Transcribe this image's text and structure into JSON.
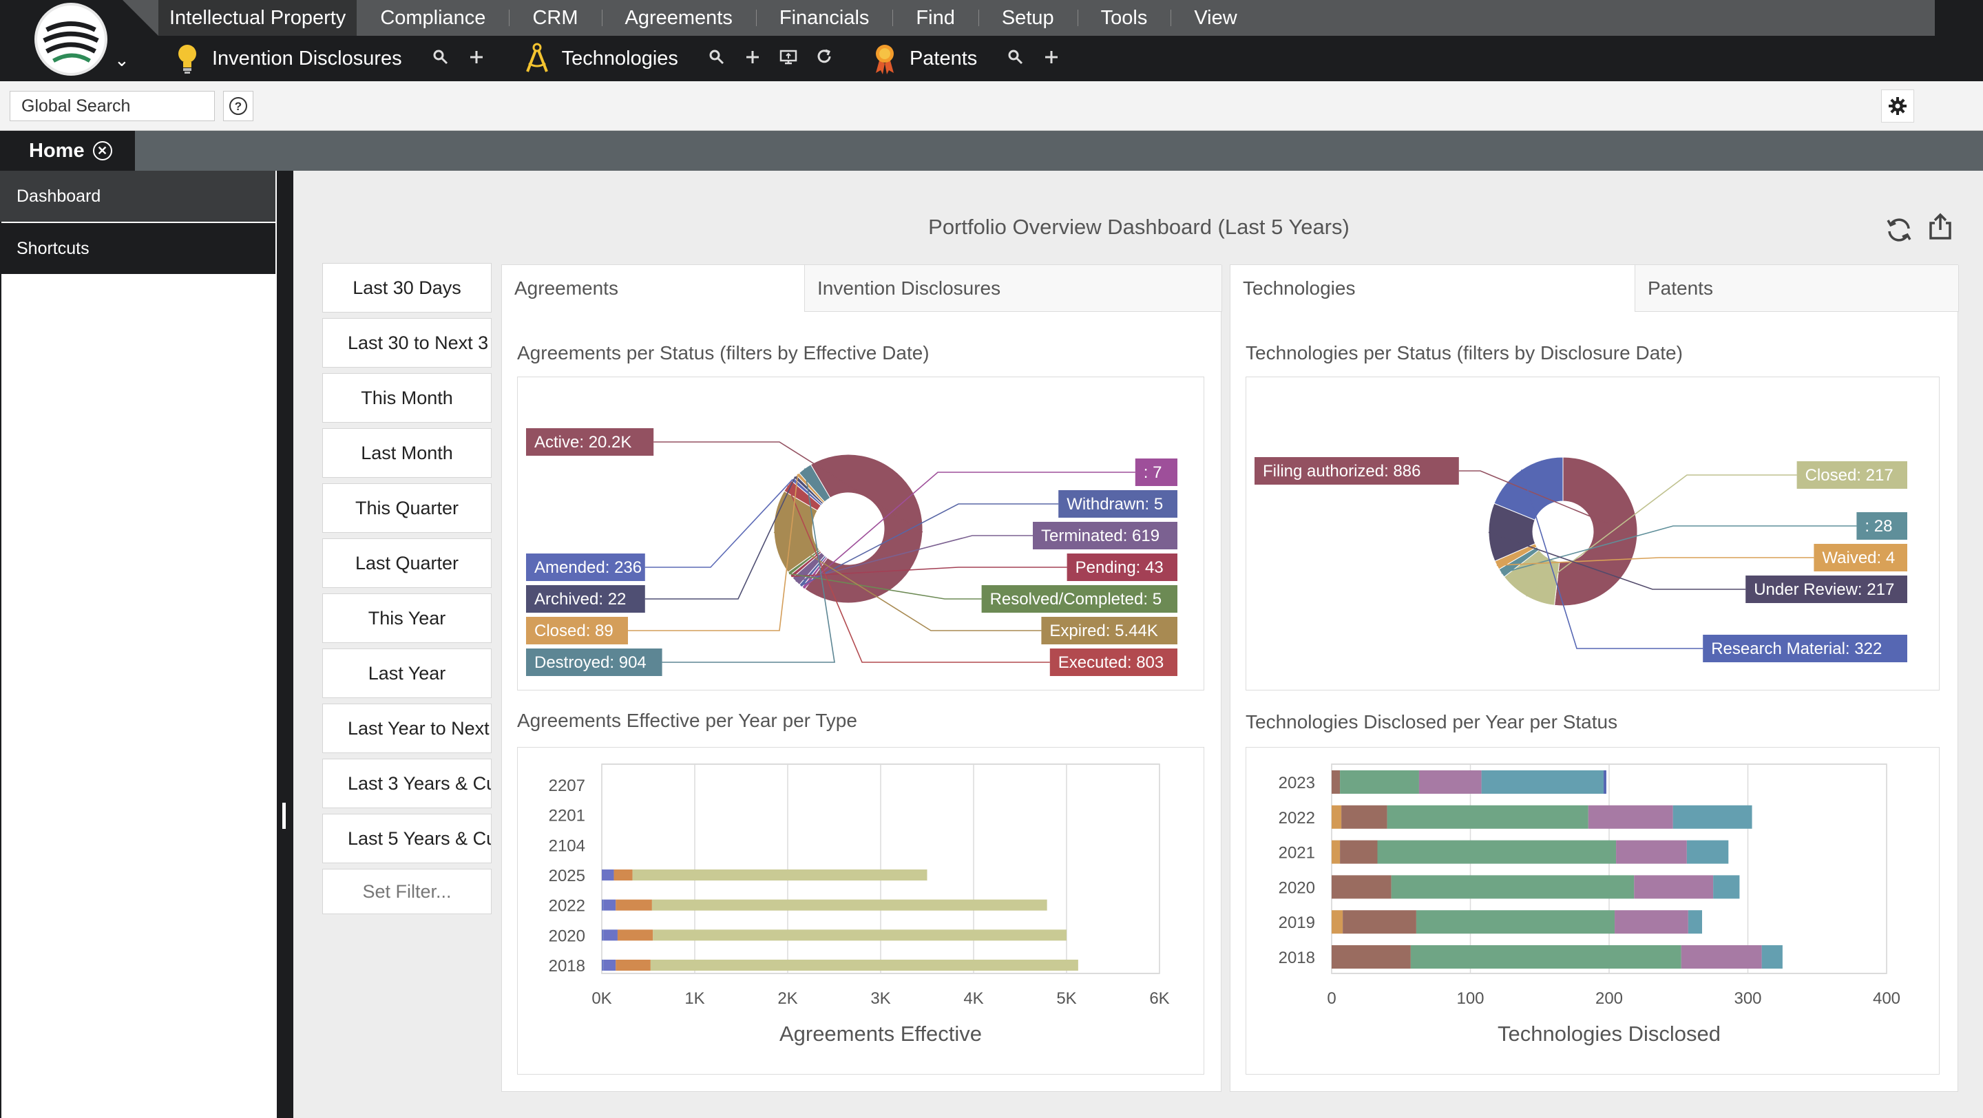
{
  "nav": {
    "main_menu": [
      "Intellectual Property",
      "Compliance",
      "CRM",
      "Agreements",
      "Financials",
      "Find",
      "Setup",
      "Tools",
      "View"
    ],
    "modules": [
      {
        "label": "Invention Disclosures",
        "icon": "lightbulb-icon"
      },
      {
        "label": "Technologies",
        "icon": "compass-icon"
      },
      {
        "label": "Patents",
        "icon": "award-ribbon-icon"
      }
    ]
  },
  "search": {
    "placeholder": "Global Search",
    "value": "Global Search"
  },
  "tabs": {
    "home_label": "Home"
  },
  "sidebar": {
    "items": [
      "Dashboard",
      "Shortcuts"
    ]
  },
  "dashboard": {
    "title": "Portfolio Overview Dashboard (Last 5 Years)",
    "filters": [
      "Last 30 Days",
      "Last 30 to Next 3",
      "This Month",
      "Last Month",
      "This Quarter",
      "Last Quarter",
      "This Year",
      "Last Year",
      "Last Year to Next",
      "Last 3 Years & Cu",
      "Last 5 Years & Cu",
      "Set Filter..."
    ],
    "left_tabs": [
      "Agreements",
      "Invention Disclosures"
    ],
    "right_tabs": [
      "Technologies",
      "Patents"
    ],
    "agreements_status_title": "Agreements per Status (filters by Effective Date)",
    "agreements_year_title": "Agreements Effective per Year per Type",
    "technologies_status_title": "Technologies per Status (filters by Disclosure Date)",
    "technologies_year_title": "Technologies Disclosed per Year per Status"
  },
  "colors": {
    "accent_dark": "#1c1d1f",
    "menu_grey": "#555759",
    "tab_strip": "#5b6266"
  },
  "chart_data": [
    {
      "type": "pie",
      "title": "Agreements per Status (filters by Effective Date)",
      "labels": [
        "Active: 20.2K",
        ": 7",
        "Withdrawn: 5",
        "Terminated: 619",
        "Pending: 43",
        "Resolved/Completed: 5",
        "Expired: 5.44K",
        "Executed: 803",
        "Amended: 236",
        "Archived: 22",
        "Closed: 89",
        "Destroyed: 904"
      ],
      "values": [
        20200,
        7,
        5,
        619,
        43,
        5,
        5440,
        803,
        236,
        22,
        89,
        904
      ],
      "colors": [
        "#935161",
        "#9e4f9a",
        "#5866a6",
        "#7b6191",
        "#a34055",
        "#6c8a54",
        "#a88a52",
        "#b24a4f",
        "#5c6ab6",
        "#4f4f73",
        "#d49e5a",
        "#5d8694"
      ]
    },
    {
      "type": "bar",
      "orientation": "horizontal",
      "stacked": true,
      "title": "Agreements Effective per Year per Type",
      "categories": [
        "2207",
        "2201",
        "2104",
        "2025",
        "2022",
        "2020",
        "2018"
      ],
      "series": [
        {
          "values": [
            0,
            0,
            0,
            0,
            20,
            20,
            20
          ],
          "color": "#6a78c4"
        },
        {
          "values": [
            0,
            0,
            0,
            130,
            130,
            150,
            130
          ],
          "color": "#6b73c5"
        },
        {
          "values": [
            0,
            0,
            0,
            200,
            390,
            380,
            375
          ],
          "color": "#d28a4e"
        },
        {
          "values": [
            0,
            0,
            0,
            3170,
            4250,
            4450,
            4600
          ],
          "color": "#c9ca94"
        }
      ],
      "xlabel": "Agreements Effective",
      "xlim": [
        0,
        6000
      ],
      "xticks": [
        "0K",
        "1K",
        "2K",
        "3K",
        "4K",
        "5K",
        "6K"
      ]
    },
    {
      "type": "pie",
      "title": "Technologies per Status (filters by Disclosure Date)",
      "labels": [
        "Filing authorized: 886",
        "Closed: 217",
        ": 28",
        "Waived: 4",
        "Under Review: 217",
        "Research Material: 322"
      ],
      "values": [
        886,
        217,
        28,
        4,
        217,
        322
      ],
      "colors": [
        "#935161",
        "#bfc18e",
        "#5f8f9a",
        "#d9a157",
        "#524a6b",
        "#5667b3"
      ]
    },
    {
      "type": "bar",
      "orientation": "horizontal",
      "stacked": true,
      "title": "Technologies Disclosed per Year per Status",
      "categories": [
        "2023",
        "2022",
        "2021",
        "2020",
        "2019",
        "2018"
      ],
      "series": [
        {
          "values": [
            0,
            7,
            6,
            0,
            8,
            0
          ],
          "color": "#d39a55"
        },
        {
          "values": [
            6,
            33,
            27,
            43,
            53,
            57
          ],
          "color": "#9a6c60"
        },
        {
          "values": [
            57,
            145,
            172,
            175,
            143,
            195
          ],
          "color": "#6fa585"
        },
        {
          "values": [
            45,
            61,
            51,
            57,
            53,
            58
          ],
          "color": "#a77aa4"
        },
        {
          "values": [
            88,
            57,
            30,
            19,
            10,
            15
          ],
          "color": "#649fb0"
        },
        {
          "values": [
            2,
            0,
            0,
            0,
            0,
            0
          ],
          "color": "#5667b3"
        }
      ],
      "xlabel": "Technologies Disclosed",
      "xlim": [
        0,
        400
      ],
      "xticks": [
        "0",
        "100",
        "200",
        "300",
        "400"
      ]
    }
  ]
}
